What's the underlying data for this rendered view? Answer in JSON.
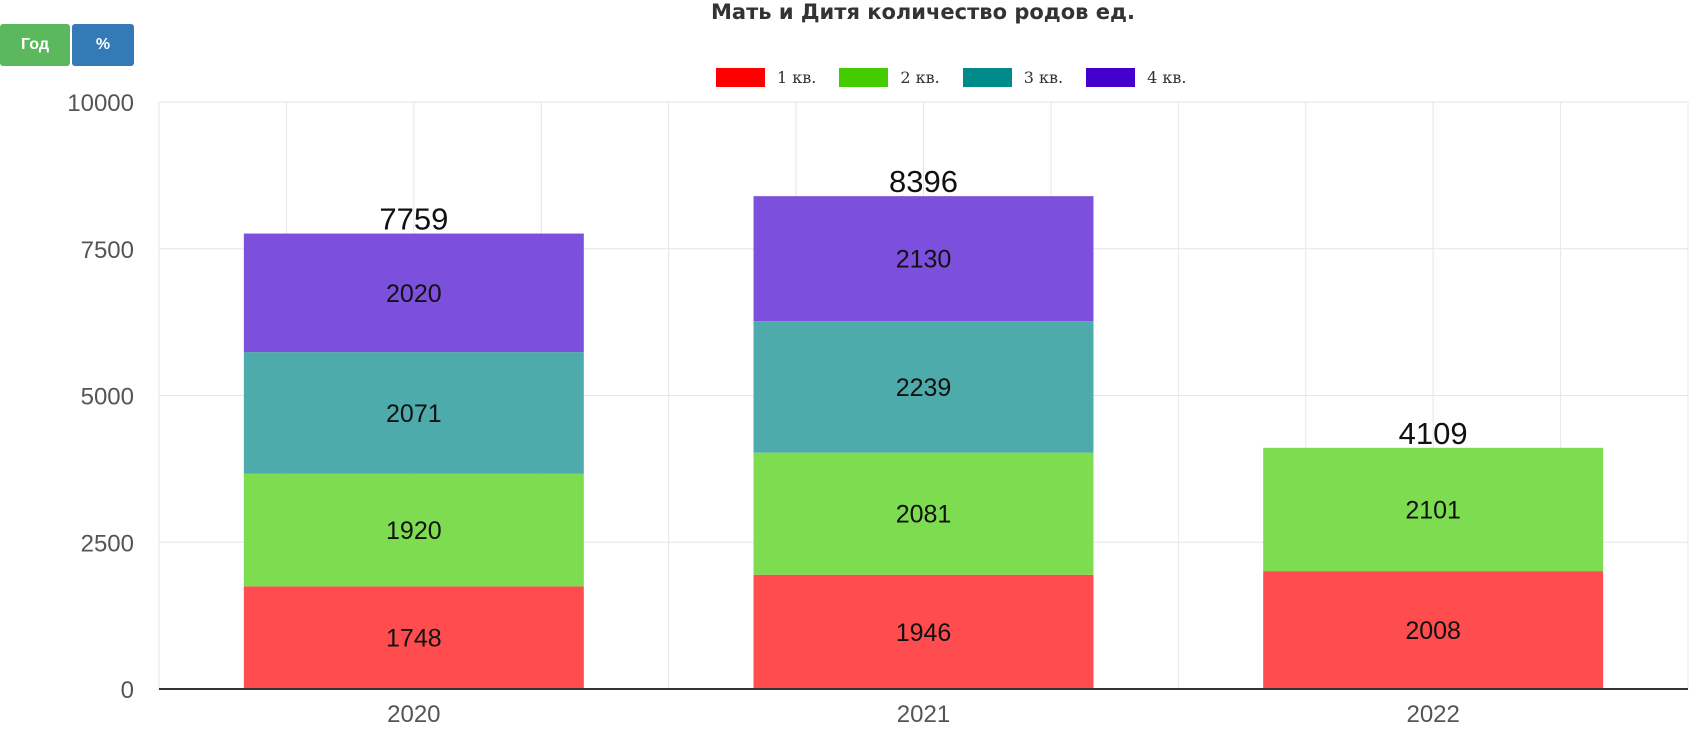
{
  "controls": {
    "year_button": {
      "label": "Год",
      "color": "#5cb85c"
    },
    "percent_button": {
      "label": "%",
      "color": "#337ab7"
    }
  },
  "chart_data": {
    "type": "bar",
    "stacked": true,
    "title": "Мать и Дитя количество родов ед.",
    "categories": [
      "2020",
      "2021",
      "2022"
    ],
    "series": [
      {
        "name": "1 кв.",
        "legend_color": "#ff0000",
        "bar_color": "#ff4d4f",
        "values": [
          1748,
          1946,
          2008
        ]
      },
      {
        "name": "2 кв.",
        "legend_color": "#44cc00",
        "bar_color": "#7ddc4f",
        "values": [
          1920,
          2081,
          2101
        ]
      },
      {
        "name": "3 кв.",
        "legend_color": "#008b8b",
        "bar_color": "#4dabab",
        "values": [
          2071,
          2239,
          null
        ]
      },
      {
        "name": "4 кв.",
        "legend_color": "#4400cc",
        "bar_color": "#7c4fdc",
        "values": [
          2020,
          2130,
          null
        ]
      }
    ],
    "totals": [
      7759,
      8396,
      4109
    ],
    "yticks": [
      "0",
      "2500",
      "5000",
      "7500",
      "10000"
    ],
    "ylim": [
      0,
      10000
    ],
    "grid": true,
    "legend_position": "top-center"
  }
}
